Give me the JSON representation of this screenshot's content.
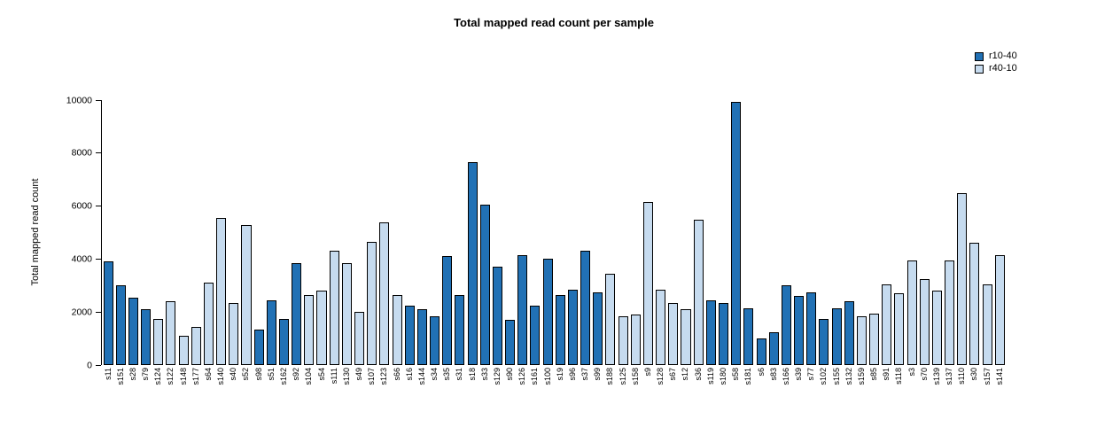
{
  "chart_data": {
    "type": "bar",
    "title": "Total mapped read count per sample",
    "xlabel": "",
    "ylabel": "Total mapped read count",
    "ylim": [
      0,
      10000
    ],
    "yticks": [
      0,
      2000,
      4000,
      6000,
      8000,
      10000
    ],
    "grid": false,
    "legend": {
      "position": "top-right",
      "entries": [
        {
          "name": "r10-40",
          "color": "#2171B5"
        },
        {
          "name": "r40-10",
          "color": "#C6DBEF"
        }
      ]
    },
    "bar_border_color": "#000000",
    "bars": [
      {
        "label": "s11",
        "value": 3900,
        "group": "r10-40"
      },
      {
        "label": "s151",
        "value": 3000,
        "group": "r10-40"
      },
      {
        "label": "s28",
        "value": 2550,
        "group": "r10-40"
      },
      {
        "label": "s79",
        "value": 2100,
        "group": "r10-40"
      },
      {
        "label": "s124",
        "value": 1750,
        "group": "r40-10"
      },
      {
        "label": "s122",
        "value": 2400,
        "group": "r40-10"
      },
      {
        "label": "s148",
        "value": 1100,
        "group": "r40-10"
      },
      {
        "label": "s177",
        "value": 1450,
        "group": "r40-10"
      },
      {
        "label": "s64",
        "value": 3100,
        "group": "r40-10"
      },
      {
        "label": "s140",
        "value": 5550,
        "group": "r40-10"
      },
      {
        "label": "s40",
        "value": 2350,
        "group": "r40-10"
      },
      {
        "label": "s52",
        "value": 5300,
        "group": "r40-10"
      },
      {
        "label": "s98",
        "value": 1350,
        "group": "r10-40"
      },
      {
        "label": "s51",
        "value": 2450,
        "group": "r10-40"
      },
      {
        "label": "s162",
        "value": 1750,
        "group": "r10-40"
      },
      {
        "label": "s92",
        "value": 3850,
        "group": "r10-40"
      },
      {
        "label": "s104",
        "value": 2650,
        "group": "r40-10"
      },
      {
        "label": "s54",
        "value": 2800,
        "group": "r40-10"
      },
      {
        "label": "s111",
        "value": 4300,
        "group": "r40-10"
      },
      {
        "label": "s130",
        "value": 3850,
        "group": "r40-10"
      },
      {
        "label": "s49",
        "value": 2000,
        "group": "r40-10"
      },
      {
        "label": "s107",
        "value": 4650,
        "group": "r40-10"
      },
      {
        "label": "s123",
        "value": 5400,
        "group": "r40-10"
      },
      {
        "label": "s66",
        "value": 2650,
        "group": "r40-10"
      },
      {
        "label": "s16",
        "value": 2250,
        "group": "r10-40"
      },
      {
        "label": "s144",
        "value": 2100,
        "group": "r10-40"
      },
      {
        "label": "s34",
        "value": 1850,
        "group": "r10-40"
      },
      {
        "label": "s35",
        "value": 4100,
        "group": "r10-40"
      },
      {
        "label": "s31",
        "value": 2650,
        "group": "r10-40"
      },
      {
        "label": "s18",
        "value": 7650,
        "group": "r10-40"
      },
      {
        "label": "s33",
        "value": 6050,
        "group": "r10-40"
      },
      {
        "label": "s129",
        "value": 3700,
        "group": "r10-40"
      },
      {
        "label": "s90",
        "value": 1700,
        "group": "r10-40"
      },
      {
        "label": "s126",
        "value": 4150,
        "group": "r10-40"
      },
      {
        "label": "s161",
        "value": 2250,
        "group": "r10-40"
      },
      {
        "label": "s100",
        "value": 4000,
        "group": "r10-40"
      },
      {
        "label": "s19",
        "value": 2650,
        "group": "r10-40"
      },
      {
        "label": "s96",
        "value": 2850,
        "group": "r10-40"
      },
      {
        "label": "s37",
        "value": 4300,
        "group": "r10-40"
      },
      {
        "label": "s99",
        "value": 2750,
        "group": "r10-40"
      },
      {
        "label": "s188",
        "value": 3450,
        "group": "r40-10"
      },
      {
        "label": "s125",
        "value": 1850,
        "group": "r40-10"
      },
      {
        "label": "s158",
        "value": 1900,
        "group": "r40-10"
      },
      {
        "label": "s9",
        "value": 6150,
        "group": "r40-10"
      },
      {
        "label": "s128",
        "value": 2850,
        "group": "r40-10"
      },
      {
        "label": "s67",
        "value": 2350,
        "group": "r40-10"
      },
      {
        "label": "s12",
        "value": 2100,
        "group": "r40-10"
      },
      {
        "label": "s36",
        "value": 5500,
        "group": "r40-10"
      },
      {
        "label": "s119",
        "value": 2450,
        "group": "r10-40"
      },
      {
        "label": "s180",
        "value": 2350,
        "group": "r10-40"
      },
      {
        "label": "s58",
        "value": 9950,
        "group": "r10-40"
      },
      {
        "label": "s181",
        "value": 2150,
        "group": "r10-40"
      },
      {
        "label": "s6",
        "value": 1000,
        "group": "r10-40"
      },
      {
        "label": "s83",
        "value": 1250,
        "group": "r10-40"
      },
      {
        "label": "s166",
        "value": 3000,
        "group": "r10-40"
      },
      {
        "label": "s39",
        "value": 2600,
        "group": "r10-40"
      },
      {
        "label": "s77",
        "value": 2750,
        "group": "r10-40"
      },
      {
        "label": "s102",
        "value": 1750,
        "group": "r10-40"
      },
      {
        "label": "s155",
        "value": 2150,
        "group": "r10-40"
      },
      {
        "label": "s132",
        "value": 2400,
        "group": "r10-40"
      },
      {
        "label": "s159",
        "value": 1850,
        "group": "r40-10"
      },
      {
        "label": "s85",
        "value": 1950,
        "group": "r40-10"
      },
      {
        "label": "s91",
        "value": 3050,
        "group": "r40-10"
      },
      {
        "label": "s118",
        "value": 2700,
        "group": "r40-10"
      },
      {
        "label": "s3",
        "value": 3950,
        "group": "r40-10"
      },
      {
        "label": "s70",
        "value": 3250,
        "group": "r40-10"
      },
      {
        "label": "s139",
        "value": 2800,
        "group": "r40-10"
      },
      {
        "label": "s137",
        "value": 3950,
        "group": "r40-10"
      },
      {
        "label": "s110",
        "value": 6500,
        "group": "r40-10"
      },
      {
        "label": "s30",
        "value": 4600,
        "group": "r40-10"
      },
      {
        "label": "s157",
        "value": 3050,
        "group": "r40-10"
      },
      {
        "label": "s141",
        "value": 4150,
        "group": "r40-10"
      }
    ]
  }
}
